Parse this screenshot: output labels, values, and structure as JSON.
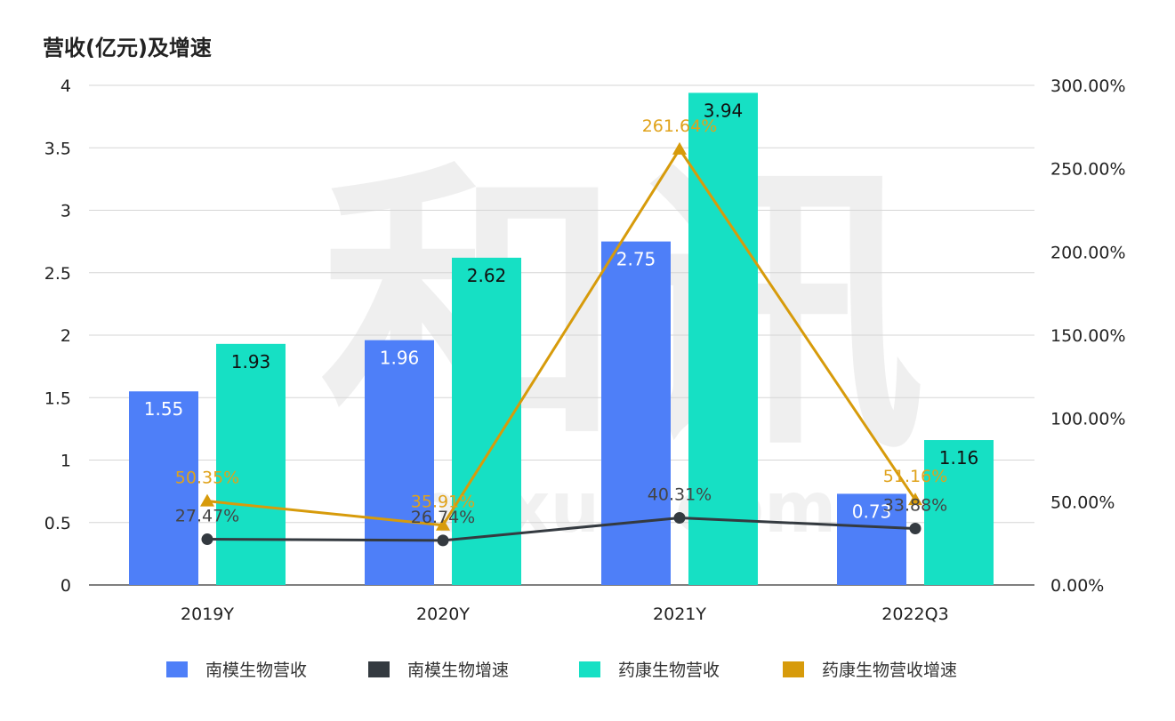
{
  "chart_data": {
    "type": "bar",
    "title": "营收(亿元)及增速",
    "categories": [
      "2019Y",
      "2020Y",
      "2021Y",
      "2022Q3"
    ],
    "y_left": {
      "lim": [
        0,
        4
      ],
      "ticks": [
        "0",
        "0.5",
        "1",
        "1.5",
        "2",
        "2.5",
        "3",
        "3.5",
        "4"
      ],
      "tick_values": [
        0,
        0.5,
        1,
        1.5,
        2,
        2.5,
        3,
        3.5,
        4
      ]
    },
    "y_right": {
      "lim": [
        0,
        300
      ],
      "ticks": [
        "0.00%",
        "50.00%",
        "100.00%",
        "150.00%",
        "200.00%",
        "250.00%",
        "300.00%"
      ],
      "tick_values": [
        0,
        50,
        100,
        150,
        200,
        250,
        300
      ]
    },
    "grid": true,
    "legend_position": "bottom",
    "series": [
      {
        "name": "南模生物营收",
        "kind": "bar",
        "axis": "left",
        "color": "#4E7FF8",
        "label_color": "#ffffff",
        "values": [
          1.55,
          1.96,
          2.75,
          0.73
        ],
        "labels": [
          "1.55",
          "1.96",
          "2.75",
          "0.73"
        ]
      },
      {
        "name": "南模生物增速",
        "kind": "line",
        "axis": "right",
        "color": "#343A40",
        "label_color": "#444444",
        "marker": "circle",
        "values": [
          27.47,
          26.74,
          40.31,
          33.88
        ],
        "labels": [
          "27.47%",
          "26.74%",
          "40.31%",
          "33.88%"
        ]
      },
      {
        "name": "药康生物营收",
        "kind": "bar",
        "axis": "left",
        "color": "#16E0C4",
        "label_color": "#111111",
        "values": [
          1.93,
          2.62,
          3.94,
          1.16
        ],
        "labels": [
          "1.93",
          "2.62",
          "3.94",
          "1.16"
        ]
      },
      {
        "name": "药康生物营收增速",
        "kind": "line",
        "axis": "right",
        "color": "#D79B0B",
        "label_color": "#E0A21A",
        "marker": "triangle",
        "values": [
          50.35,
          35.91,
          261.64,
          51.16
        ],
        "labels": [
          "50.35%",
          "35.91%",
          "261.64%",
          "51.16%"
        ]
      }
    ]
  },
  "watermark": {
    "main": "和讯",
    "sub": "hexun.com"
  }
}
